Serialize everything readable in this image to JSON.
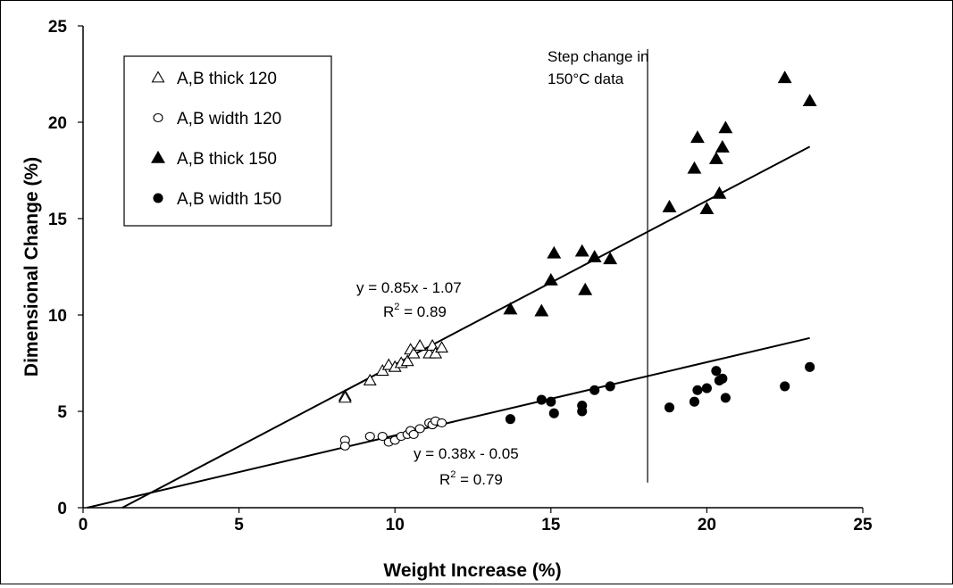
{
  "chart_data": {
    "type": "scatter",
    "title": "",
    "xlabel": "Weight Increase (%)",
    "ylabel": "Dimensional Change (%)",
    "xlim": [
      0,
      25
    ],
    "ylim": [
      0,
      25
    ],
    "xticks": [
      0,
      5,
      10,
      15,
      20,
      25
    ],
    "yticks": [
      0,
      5,
      10,
      15,
      20,
      25
    ],
    "grid": false,
    "legend_position": "top-left",
    "series": [
      {
        "name": "A,B thick 120",
        "marker": "triangle-open",
        "points": [
          [
            8.4,
            5.8
          ],
          [
            8.4,
            5.7
          ],
          [
            9.2,
            6.6
          ],
          [
            9.6,
            7.1
          ],
          [
            9.8,
            7.4
          ],
          [
            10.0,
            7.3
          ],
          [
            10.2,
            7.5
          ],
          [
            10.4,
            7.6
          ],
          [
            10.5,
            8.2
          ],
          [
            10.6,
            8.0
          ],
          [
            10.8,
            8.4
          ],
          [
            11.1,
            8.0
          ],
          [
            11.2,
            8.4
          ],
          [
            11.3,
            8.0
          ],
          [
            11.5,
            8.3
          ]
        ]
      },
      {
        "name": "A,B width 120",
        "marker": "circle-open",
        "points": [
          [
            8.4,
            3.5
          ],
          [
            8.4,
            3.2
          ],
          [
            9.2,
            3.7
          ],
          [
            9.6,
            3.7
          ],
          [
            9.8,
            3.4
          ],
          [
            10.0,
            3.5
          ],
          [
            10.2,
            3.7
          ],
          [
            10.4,
            3.8
          ],
          [
            10.5,
            4.0
          ],
          [
            10.6,
            3.8
          ],
          [
            10.8,
            4.1
          ],
          [
            11.1,
            4.4
          ],
          [
            11.2,
            4.3
          ],
          [
            11.3,
            4.5
          ],
          [
            11.5,
            4.4
          ]
        ]
      },
      {
        "name": "A,B thick 150",
        "marker": "triangle-filled",
        "points": [
          [
            13.7,
            10.3
          ],
          [
            14.7,
            10.2
          ],
          [
            15.0,
            11.8
          ],
          [
            15.1,
            13.2
          ],
          [
            16.0,
            13.3
          ],
          [
            16.1,
            11.3
          ],
          [
            16.4,
            13.0
          ],
          [
            16.9,
            12.9
          ],
          [
            18.8,
            15.6
          ],
          [
            19.6,
            17.6
          ],
          [
            19.7,
            19.2
          ],
          [
            20.0,
            15.5
          ],
          [
            20.3,
            18.1
          ],
          [
            20.4,
            16.3
          ],
          [
            20.5,
            18.7
          ],
          [
            20.6,
            19.7
          ],
          [
            22.5,
            22.3
          ],
          [
            23.3,
            21.1
          ]
        ]
      },
      {
        "name": "A,B width 150",
        "marker": "circle-filled",
        "points": [
          [
            13.7,
            4.6
          ],
          [
            14.7,
            5.6
          ],
          [
            15.0,
            5.5
          ],
          [
            15.1,
            4.9
          ],
          [
            16.0,
            5.3
          ],
          [
            16.0,
            5.0
          ],
          [
            16.4,
            6.1
          ],
          [
            16.9,
            6.3
          ],
          [
            18.8,
            5.2
          ],
          [
            19.6,
            5.5
          ],
          [
            19.7,
            6.1
          ],
          [
            20.0,
            6.2
          ],
          [
            20.3,
            7.1
          ],
          [
            20.4,
            6.6
          ],
          [
            20.5,
            6.7
          ],
          [
            20.6,
            5.7
          ],
          [
            22.5,
            6.3
          ],
          [
            23.3,
            7.3
          ]
        ]
      }
    ],
    "trendlines": [
      {
        "slope": 0.85,
        "intercept": -1.07,
        "x_range": [
          0,
          23.3
        ],
        "equation": "y = 0.85x - 1.07",
        "r2_label": "R",
        "r2_exp": "2",
        "r2_value": " = 0.89"
      },
      {
        "slope": 0.38,
        "intercept": -0.05,
        "x_range": [
          0,
          23.3
        ],
        "equation": "y = 0.38x - 0.05",
        "r2_label": "R",
        "r2_exp": "2",
        "r2_value": " = 0.79"
      }
    ],
    "annotations": {
      "step_line_x": 18.1,
      "step_line_y": [
        1.3,
        23.8
      ],
      "step_text_1": "Step change in",
      "step_text_2": "150°C data"
    }
  }
}
